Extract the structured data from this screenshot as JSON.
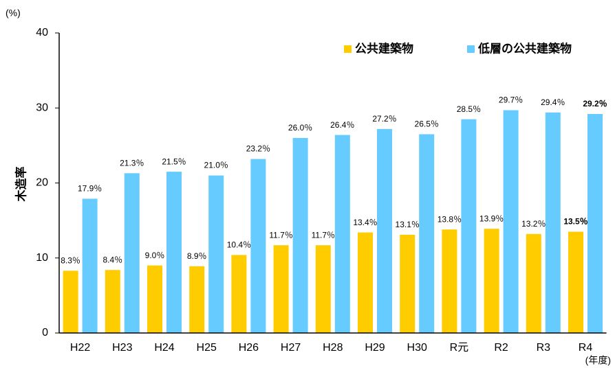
{
  "chart_data": {
    "type": "bar",
    "y_unit": "(%)",
    "x_unit": "(年度)",
    "ylabel": "木造率",
    "categories": [
      "H22",
      "H23",
      "H24",
      "H25",
      "H26",
      "H27",
      "H28",
      "H29",
      "H30",
      "R元",
      "R2",
      "R3",
      "R4"
    ],
    "series": [
      {
        "name": "公共建築物",
        "color": "#FFCC00",
        "values": [
          8.3,
          8.4,
          9.0,
          8.9,
          10.4,
          11.7,
          11.7,
          13.4,
          13.1,
          13.8,
          13.9,
          13.2,
          13.5
        ],
        "value_labels": [
          "8.3％",
          "8.4％",
          "9.0％",
          "8.9％",
          "10.4％",
          "11.7％",
          "11.7％",
          "13.4％",
          "13.1％",
          "13.8％",
          "13.9％",
          "13.2％",
          "13.5％"
        ]
      },
      {
        "name": "低層の公共建築物",
        "color": "#66CCFF",
        "values": [
          17.9,
          21.3,
          21.5,
          21.0,
          23.2,
          26.0,
          26.4,
          27.2,
          26.5,
          28.5,
          29.7,
          29.4,
          29.2
        ],
        "value_labels": [
          "17.9％",
          "21.3％",
          "21.5％",
          "21.0％",
          "23.2％",
          "26.0％",
          "26.4％",
          "27.2％",
          "26.5％",
          "28.5％",
          "29.7％",
          "29.4％",
          "29.2％"
        ]
      }
    ],
    "ylim": [
      0,
      40
    ],
    "yticks": [
      0,
      10,
      20,
      30,
      40
    ],
    "grid": false,
    "legend": "top-right"
  }
}
